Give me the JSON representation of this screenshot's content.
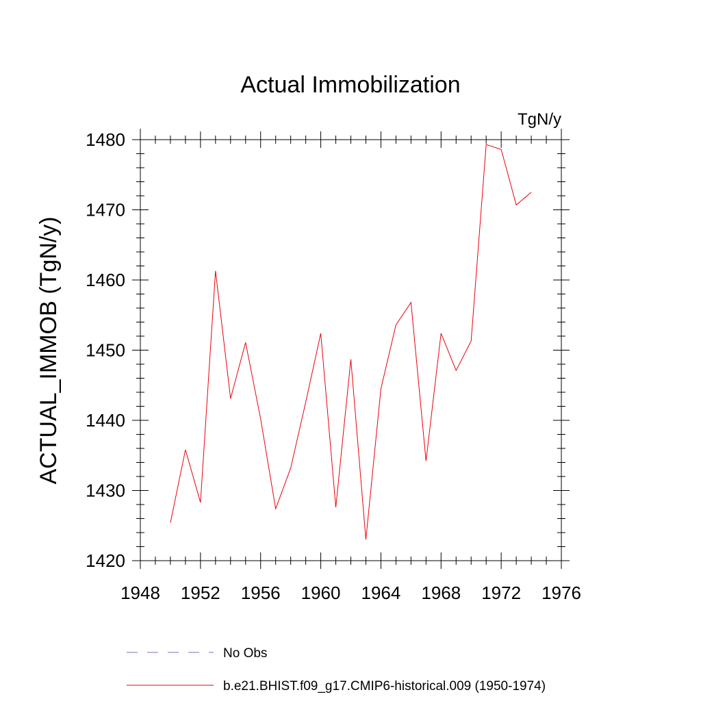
{
  "chart_data": {
    "type": "line",
    "title": "Actual Immobilization",
    "units_label": "TgN/y",
    "ylabel": "ACTUAL_IMMOB  (TgN/y)",
    "xlabel": "",
    "xlim": [
      1948,
      1976
    ],
    "ylim": [
      1420,
      1482
    ],
    "x_ticks": [
      1948,
      1952,
      1956,
      1960,
      1964,
      1968,
      1972,
      1976
    ],
    "x_tick_labels": [
      "1948",
      "1952",
      "1956",
      "1960",
      "1964",
      "1968",
      "1972",
      "1976"
    ],
    "y_ticks": [
      1420,
      1430,
      1440,
      1450,
      1460,
      1470,
      1480
    ],
    "y_tick_labels": [
      "1420",
      "1430",
      "1440",
      "1450",
      "1460",
      "1470",
      "1480"
    ],
    "grid": false,
    "legend_position": "bottom",
    "series": [
      {
        "name": "b.e21.BHIST.f09_g17.CMIP6-historical.009 (1950-1974)",
        "color": "#e8000b",
        "style": "solid",
        "x": [
          1950,
          1951,
          1952,
          1953,
          1954,
          1955,
          1956,
          1957,
          1958,
          1959,
          1960,
          1961,
          1962,
          1963,
          1964,
          1965,
          1966,
          1967,
          1968,
          1969,
          1970,
          1971,
          1972,
          1973,
          1974
        ],
        "y": [
          1425.4,
          1435.8,
          1428.3,
          1461.3,
          1443.1,
          1451.1,
          1440.2,
          1427.4,
          1433.2,
          1442.6,
          1452.4,
          1427.6,
          1448.7,
          1423.0,
          1444.5,
          1453.6,
          1456.8,
          1434.2,
          1452.4,
          1447.1,
          1451.3,
          1479.3,
          1478.6,
          1470.7,
          1472.5
        ]
      }
    ],
    "legend": [
      {
        "label": "No Obs",
        "color": "#7b68c8",
        "style": "dashed"
      },
      {
        "label": "b.e21.BHIST.f09_g17.CMIP6-historical.009 (1950-1974)",
        "color": "#e8000b",
        "style": "solid"
      }
    ]
  }
}
